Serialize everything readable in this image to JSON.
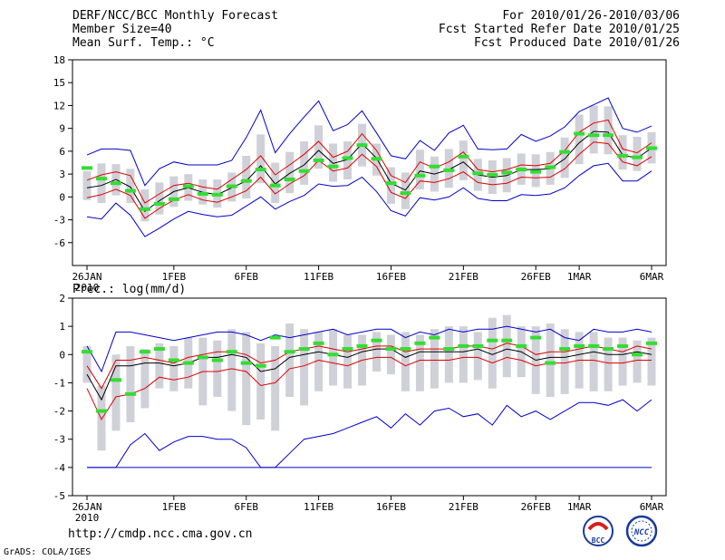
{
  "header": {
    "line1_left": "DERF/NCC/BCC Monthly Forecast",
    "line2_left": "Member Size=40",
    "line3_left": "Mean Surf. Temp.: °C",
    "line1_right": "For 2010/01/26-2010/03/06",
    "line2_right": "Fcst Started Refer Date 2010/01/25",
    "line3_right": "Fcst Produced Date 2010/01/26"
  },
  "prec_label": "Prec.: log(mm/d)",
  "footer": {
    "url": "http://cmdp.ncc.cma.gov.cn",
    "grads": "GrADS: COLA/IGES",
    "logo1_text": "BCC",
    "logo2_text": "NCC"
  },
  "colors": {
    "bar": "#d0d0d8",
    "envelope": "#0000cc",
    "spread": "#dd0000",
    "mean": "#000000",
    "obs": "#33dd33"
  },
  "chart_data": [
    {
      "type": "line",
      "title": "Mean Surf. Temp.: °C",
      "x_ticks": [
        "26JAN",
        "1FEB",
        "6FEB",
        "11FEB",
        "16FEB",
        "21FEB",
        "26FEB",
        "1MAR",
        "6MAR"
      ],
      "x_tick_days": [
        0,
        6,
        11,
        16,
        21,
        26,
        31,
        34,
        39
      ],
      "x_sublabel": "2010",
      "ylim": [
        -9,
        18
      ],
      "y_ticks": [
        -6,
        -3,
        0,
        3,
        6,
        9,
        12,
        15,
        18
      ],
      "days": 40,
      "series": [
        {
          "name": "max",
          "values": [
            5.5,
            6.3,
            6.3,
            6.1,
            1.5,
            3.7,
            4.6,
            4.2,
            4.2,
            4.2,
            4.8,
            7.8,
            11.4,
            5.8,
            8.3,
            10.5,
            12.6,
            8.7,
            9.5,
            11.3,
            8.4,
            5.4,
            5.0,
            7.4,
            6.1,
            8.4,
            9.4,
            6.3,
            6.2,
            6.3,
            8.2,
            7.3,
            8.0,
            9.2,
            11.2,
            12.1,
            13.0,
            9.0,
            8.5,
            9.3
          ]
        },
        {
          "name": "p75",
          "values": [
            2.2,
            2.9,
            3.3,
            2.8,
            -0.8,
            0.4,
            1.5,
            1.8,
            1.3,
            1.0,
            2.3,
            3.6,
            5.4,
            2.9,
            4.2,
            5.6,
            7.3,
            5.2,
            6.0,
            8.3,
            6.1,
            2.8,
            1.9,
            4.6,
            3.8,
            4.6,
            5.9,
            3.6,
            3.3,
            3.6,
            4.2,
            4.1,
            4.4,
            6.1,
            8.5,
            9.7,
            10.1,
            6.3,
            5.8,
            7.1
          ]
        },
        {
          "name": "mean",
          "values": [
            1.2,
            1.5,
            2.3,
            1.3,
            -1.9,
            -0.5,
            0.7,
            1.2,
            0.6,
            0.3,
            1.2,
            2.1,
            4.1,
            1.7,
            3.1,
            4.2,
            6.1,
            4.4,
            4.9,
            7.0,
            5.1,
            1.8,
            0.9,
            3.4,
            3.0,
            3.6,
            4.6,
            2.9,
            2.6,
            2.8,
            3.6,
            3.6,
            3.7,
            5.0,
            7.1,
            8.6,
            8.5,
            5.5,
            5.1,
            6.4
          ]
        },
        {
          "name": "p25",
          "values": [
            -0.1,
            0.3,
            1.0,
            0.2,
            -2.8,
            -1.5,
            -0.4,
            0.3,
            -0.4,
            -0.7,
            0.0,
            0.8,
            2.6,
            0.4,
            1.7,
            2.8,
            4.8,
            3.4,
            3.8,
            5.6,
            4.0,
            0.6,
            -0.2,
            2.1,
            1.9,
            2.4,
            3.3,
            1.9,
            1.6,
            1.8,
            2.6,
            2.5,
            2.6,
            3.7,
            5.6,
            7.2,
            7.0,
            4.6,
            4.1,
            5.3
          ]
        },
        {
          "name": "min",
          "values": [
            -2.6,
            -2.9,
            -0.8,
            -2.4,
            -5.2,
            -4.1,
            -2.9,
            -1.9,
            -2.3,
            -2.6,
            -2.4,
            -1.2,
            0.0,
            -1.6,
            -0.6,
            0.2,
            1.7,
            1.4,
            1.5,
            2.6,
            0.7,
            -1.8,
            -2.5,
            -0.1,
            -0.4,
            0.0,
            1.2,
            -0.2,
            -0.5,
            -0.5,
            0.3,
            0.2,
            0.4,
            1.2,
            2.8,
            4.1,
            4.4,
            2.1,
            2.1,
            3.4
          ]
        },
        {
          "name": "obs",
          "values": [
            3.8,
            2.4,
            1.8,
            0.8,
            -1.6,
            -0.9,
            -0.3,
            1.4,
            0.4,
            0.3,
            1.4,
            2.1,
            3.6,
            1.5,
            2.3,
            3.4,
            4.8,
            4.0,
            5.1,
            6.8,
            5.0,
            1.8,
            0.5,
            2.8,
            4.0,
            3.5,
            5.3,
            3.1,
            2.9,
            3.2,
            3.6,
            3.3,
            3.9,
            5.9,
            8.3,
            8.1,
            8.1,
            5.4,
            5.2,
            6.4
          ]
        }
      ],
      "bars_low": [
        -0.4,
        -0.8,
        0.2,
        -0.8,
        -3.2,
        -2.3,
        -1.3,
        -0.5,
        -1.0,
        -1.4,
        -0.6,
        -0.2,
        1.8,
        -0.8,
        0.5,
        1.6,
        3.7,
        2.0,
        2.3,
        4.0,
        2.8,
        -0.9,
        -1.6,
        1.0,
        0.7,
        1.2,
        2.2,
        0.8,
        0.4,
        0.6,
        1.6,
        1.3,
        1.6,
        2.5,
        4.3,
        5.7,
        5.6,
        3.6,
        3.4,
        4.4
      ],
      "bars_high": [
        3.4,
        4.4,
        4.3,
        3.7,
        1.0,
        1.9,
        2.7,
        3.0,
        2.3,
        2.3,
        3.2,
        5.4,
        8.2,
        4.5,
        5.9,
        7.3,
        9.4,
        7.0,
        7.3,
        9.6,
        7.0,
        3.9,
        3.2,
        6.2,
        5.3,
        6.3,
        7.4,
        5.0,
        4.8,
        5.1,
        5.7,
        5.6,
        5.9,
        7.8,
        10.8,
        12.0,
        11.9,
        8.1,
        7.9,
        8.5
      ]
    },
    {
      "type": "line",
      "title": "Prec.: log(mm/d)",
      "x_ticks": [
        "26JAN",
        "1FEB",
        "6FEB",
        "11FEB",
        "16FEB",
        "21FEB",
        "26FEB",
        "1MAR",
        "6MAR"
      ],
      "x_tick_days": [
        0,
        6,
        11,
        16,
        21,
        26,
        31,
        34,
        39
      ],
      "x_sublabel": "2010",
      "ylim": [
        -5,
        2
      ],
      "y_ticks": [
        -5,
        -4,
        -3,
        -2,
        -1,
        0,
        1,
        2
      ],
      "days": 40,
      "series": [
        {
          "name": "max",
          "values": [
            0.3,
            -0.6,
            0.8,
            0.8,
            0.7,
            0.6,
            0.5,
            0.6,
            0.7,
            0.8,
            0.8,
            0.7,
            0.5,
            0.7,
            0.6,
            0.7,
            0.8,
            0.9,
            0.7,
            0.8,
            0.9,
            0.9,
            0.6,
            0.8,
            0.7,
            0.9,
            0.8,
            0.9,
            0.9,
            1.0,
            0.9,
            0.8,
            0.9,
            0.6,
            0.5,
            0.9,
            0.8,
            0.8,
            0.9,
            0.8
          ]
        },
        {
          "name": "p75",
          "values": [
            -0.4,
            -1.2,
            -0.2,
            -0.2,
            -0.1,
            -0.2,
            -0.3,
            -0.1,
            0.0,
            0.1,
            0.1,
            0.0,
            -0.3,
            -0.2,
            0.1,
            0.2,
            0.3,
            0.2,
            0.1,
            0.2,
            0.3,
            0.3,
            0.1,
            0.2,
            0.2,
            0.2,
            0.3,
            0.3,
            0.2,
            0.4,
            0.3,
            0.0,
            0.1,
            0.1,
            0.2,
            0.3,
            0.2,
            0.1,
            0.3,
            0.2
          ]
        },
        {
          "name": "mean",
          "values": [
            -0.7,
            -1.6,
            -0.4,
            -0.4,
            -0.3,
            -0.3,
            -0.4,
            -0.3,
            -0.1,
            -0.1,
            0.0,
            -0.1,
            -0.6,
            -0.5,
            -0.1,
            0.0,
            0.1,
            0.0,
            -0.1,
            0.1,
            0.2,
            0.2,
            -0.1,
            0.1,
            0.1,
            0.1,
            0.1,
            0.2,
            0.0,
            0.2,
            0.1,
            -0.2,
            -0.1,
            -0.1,
            0.0,
            0.1,
            0.0,
            0.0,
            0.1,
            0.0
          ]
        },
        {
          "name": "p25",
          "values": [
            -1.2,
            -2.3,
            -1.5,
            -1.4,
            -1.2,
            -0.8,
            -0.9,
            -0.8,
            -0.6,
            -0.6,
            -0.5,
            -0.6,
            -1.1,
            -1.0,
            -0.5,
            -0.4,
            -0.2,
            -0.3,
            -0.4,
            -0.2,
            -0.1,
            -0.1,
            -0.4,
            -0.2,
            -0.2,
            -0.2,
            -0.1,
            -0.1,
            -0.3,
            -0.1,
            -0.2,
            -0.4,
            -0.3,
            -0.3,
            -0.2,
            -0.2,
            -0.3,
            -0.3,
            -0.2,
            -0.2
          ]
        },
        {
          "name": "min",
          "values": [
            -4.0,
            -4.0,
            -4.0,
            -3.2,
            -2.8,
            -3.4,
            -3.1,
            -2.9,
            -2.9,
            -3.0,
            -3.0,
            -3.3,
            -4.0,
            -4.0,
            -3.5,
            -3.0,
            -2.9,
            -2.8,
            -2.6,
            -2.4,
            -2.2,
            -2.6,
            -2.1,
            -2.5,
            -2.0,
            -1.9,
            -2.2,
            -2.1,
            -2.5,
            -1.8,
            -2.2,
            -2.0,
            -2.3,
            -2.0,
            -1.7,
            -1.7,
            -1.8,
            -1.6,
            -2.0,
            -1.6
          ]
        },
        {
          "name": "obs",
          "values": [
            0.1,
            -2.0,
            -0.9,
            -1.4,
            0.1,
            0.2,
            -0.2,
            -0.3,
            -0.1,
            -0.2,
            0.1,
            -0.3,
            -0.4,
            0.6,
            0.1,
            0.2,
            0.4,
            0.0,
            0.2,
            0.3,
            0.5,
            0.2,
            0.2,
            0.4,
            0.6,
            0.2,
            0.3,
            0.3,
            0.5,
            0.5,
            0.3,
            0.6,
            -0.3,
            0.2,
            0.3,
            0.3,
            0.2,
            0.3,
            0.0,
            0.4
          ]
        }
      ],
      "bars_low": [
        -1.0,
        -3.4,
        -2.7,
        -2.4,
        -1.9,
        -1.2,
        -1.3,
        -1.2,
        -1.8,
        -1.5,
        -2.0,
        -2.5,
        -2.3,
        -2.7,
        -1.5,
        -1.8,
        -1.3,
        -1.1,
        -1.2,
        -1.1,
        -0.6,
        -0.7,
        -1.3,
        -1.3,
        -1.2,
        -1.0,
        -1.0,
        -0.9,
        -1.2,
        -0.8,
        -0.8,
        -1.4,
        -1.5,
        -1.4,
        -1.2,
        -1.3,
        -1.3,
        -1.1,
        -1.0,
        -1.1
      ],
      "bars_high": [
        0.3,
        -1.1,
        0.0,
        0.3,
        0.2,
        0.4,
        0.3,
        0.6,
        0.6,
        0.5,
        0.9,
        0.8,
        0.4,
        0.3,
        1.1,
        0.9,
        0.8,
        0.9,
        0.7,
        0.7,
        0.8,
        0.7,
        0.8,
        0.7,
        0.9,
        1.0,
        1.0,
        0.8,
        1.3,
        1.4,
        1.0,
        1.0,
        1.1,
        0.9,
        0.8,
        0.8,
        0.6,
        0.6,
        0.5,
        0.6
      ]
    }
  ]
}
